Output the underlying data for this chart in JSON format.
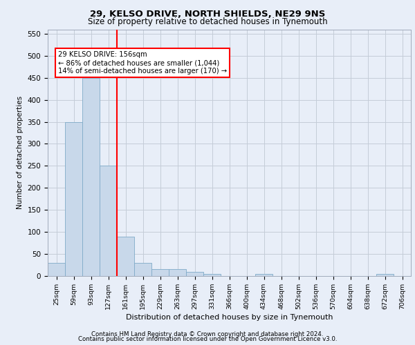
{
  "title1": "29, KELSO DRIVE, NORTH SHIELDS, NE29 9NS",
  "title2": "Size of property relative to detached houses in Tynemouth",
  "xlabel": "Distribution of detached houses by size in Tynemouth",
  "ylabel": "Number of detached properties",
  "bin_labels": [
    "25sqm",
    "59sqm",
    "93sqm",
    "127sqm",
    "161sqm",
    "195sqm",
    "229sqm",
    "263sqm",
    "297sqm",
    "331sqm",
    "366sqm",
    "400sqm",
    "434sqm",
    "468sqm",
    "502sqm",
    "536sqm",
    "570sqm",
    "604sqm",
    "638sqm",
    "672sqm",
    "706sqm"
  ],
  "bar_heights": [
    30,
    350,
    450,
    250,
    90,
    30,
    15,
    15,
    10,
    5,
    0,
    0,
    5,
    0,
    0,
    0,
    0,
    0,
    0,
    5,
    0
  ],
  "bar_color": "#c8d8ea",
  "bar_edge_color": "#7faac8",
  "red_line_index": 4,
  "ylim": [
    0,
    560
  ],
  "yticks": [
    0,
    50,
    100,
    150,
    200,
    250,
    300,
    350,
    400,
    450,
    500,
    550
  ],
  "annotation_text": "29 KELSO DRIVE: 156sqm\n← 86% of detached houses are smaller (1,044)\n14% of semi-detached houses are larger (170) →",
  "footer_line1": "Contains HM Land Registry data © Crown copyright and database right 2024.",
  "footer_line2": "Contains public sector information licensed under the Open Government Licence v3.0.",
  "bg_color": "#e8eef8",
  "plot_bg_color": "#e8eef8",
  "grid_color": "#c4ccd8"
}
